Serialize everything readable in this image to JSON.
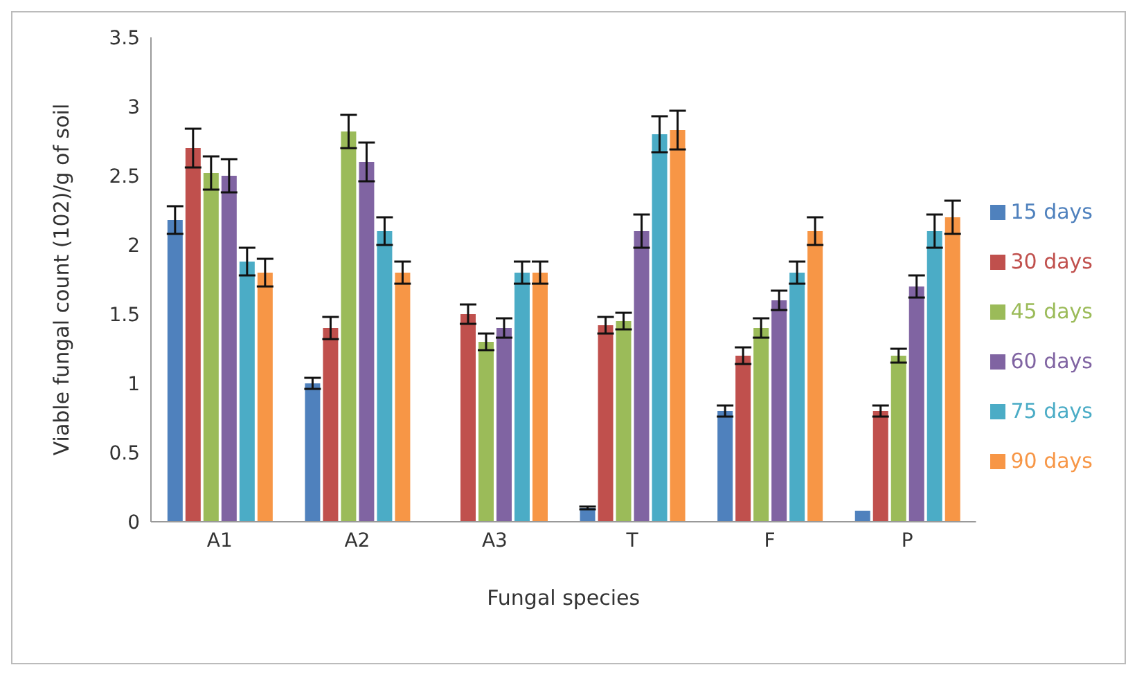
{
  "chart_data": {
    "type": "bar",
    "xlabel": "Fungal species",
    "ylabel": "Viable fungal count (102)/g of soil",
    "categories": [
      "A1",
      "A2",
      "A3",
      "T",
      "F",
      "P"
    ],
    "series": [
      {
        "name": "15 days",
        "color": "#4f81bd",
        "values": [
          2.18,
          1.0,
          null,
          0.1,
          0.8,
          0.08
        ],
        "errors": [
          0.1,
          0.04,
          null,
          0.01,
          0.04,
          null
        ]
      },
      {
        "name": "30 days",
        "color": "#c0504d",
        "values": [
          2.7,
          1.4,
          1.5,
          1.42,
          1.2,
          0.8
        ],
        "errors": [
          0.14,
          0.08,
          0.07,
          0.06,
          0.06,
          0.04
        ]
      },
      {
        "name": "45 days",
        "color": "#9bbb59",
        "values": [
          2.52,
          2.82,
          1.3,
          1.45,
          1.4,
          1.2
        ],
        "errors": [
          0.12,
          0.12,
          0.06,
          0.06,
          0.07,
          0.05
        ]
      },
      {
        "name": "60 days",
        "color": "#8064a2",
        "values": [
          2.5,
          2.6,
          1.4,
          2.1,
          1.6,
          1.7
        ],
        "errors": [
          0.12,
          0.14,
          0.07,
          0.12,
          0.07,
          0.08
        ]
      },
      {
        "name": "75 days",
        "color": "#4bacc6",
        "values": [
          1.88,
          2.1,
          1.8,
          2.8,
          1.8,
          2.1
        ],
        "errors": [
          0.1,
          0.1,
          0.08,
          0.13,
          0.08,
          0.12
        ]
      },
      {
        "name": "90 days",
        "color": "#f79646",
        "values": [
          1.8,
          1.8,
          1.8,
          2.83,
          2.1,
          2.2
        ],
        "errors": [
          0.1,
          0.08,
          0.08,
          0.14,
          0.1,
          0.12
        ]
      }
    ],
    "ylim": [
      0,
      3.5
    ],
    "yticks": [
      0,
      0.5,
      1,
      1.5,
      2,
      2.5,
      3,
      3.5
    ],
    "grid": false,
    "legend": "right"
  }
}
